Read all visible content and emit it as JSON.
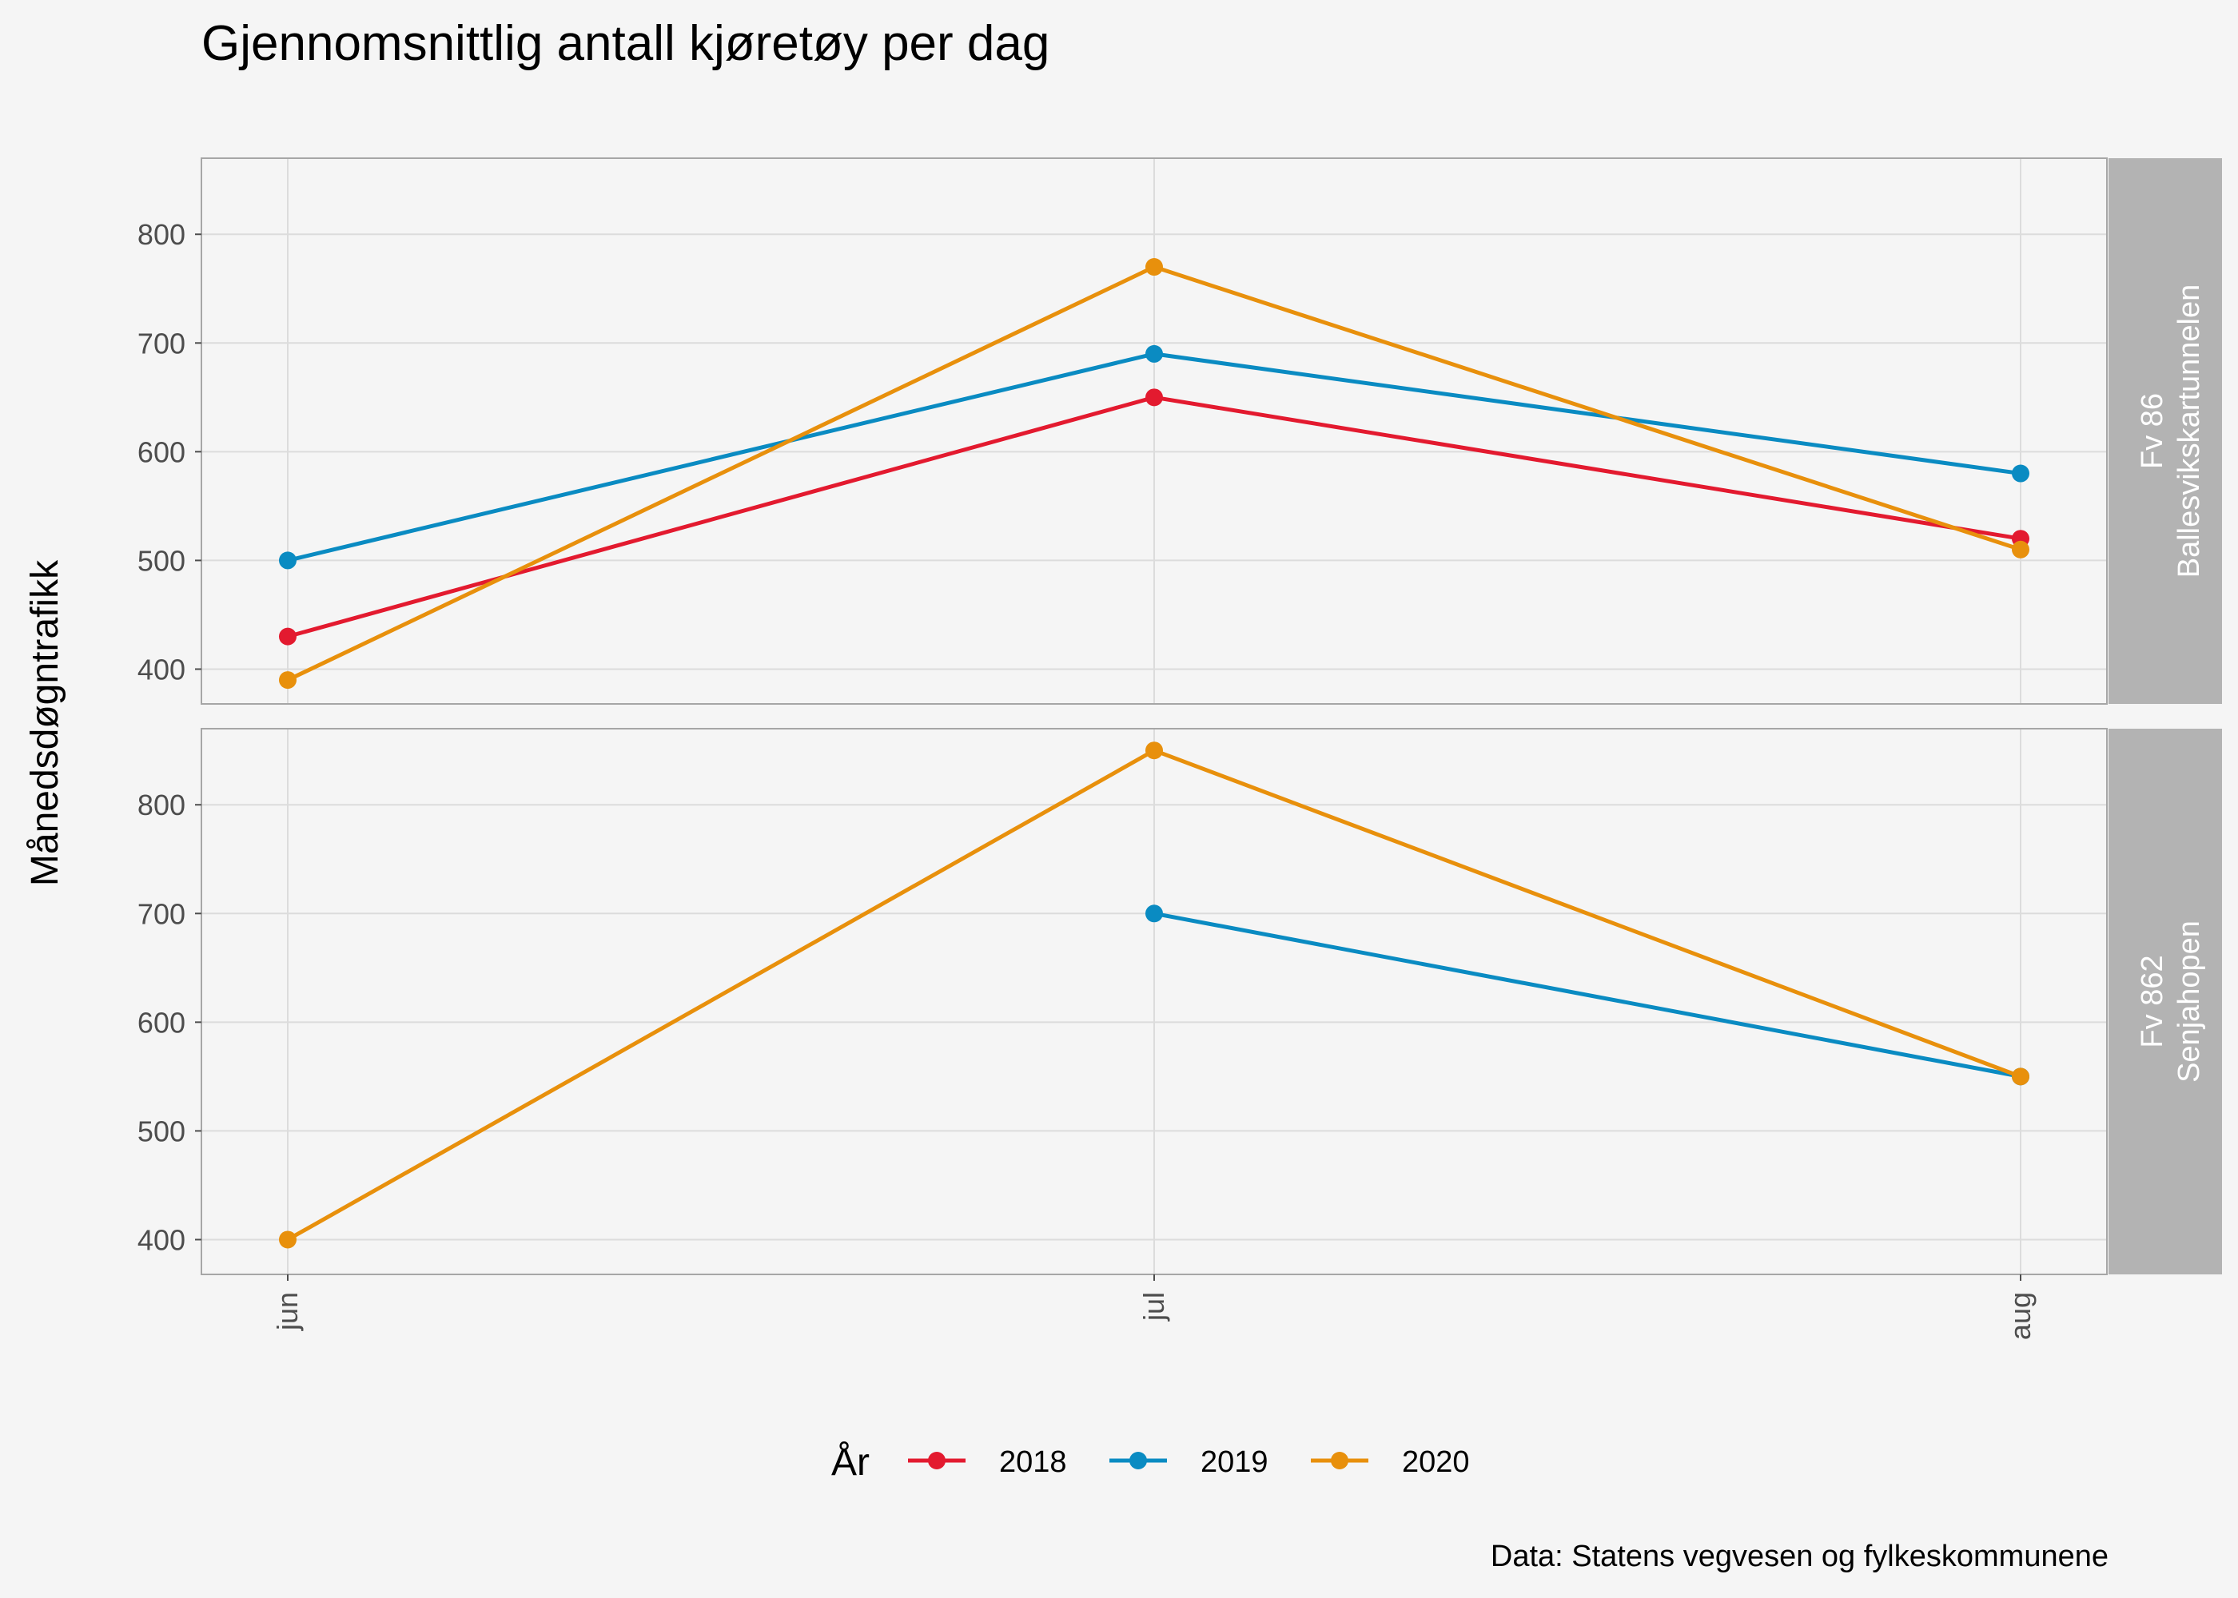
{
  "chart_data": {
    "type": "line",
    "title": "Gjennomsnittlig antall kjøretøy per dag",
    "ylabel": "Månedsdøgntrafikk",
    "xlabel": "",
    "caption": "Data: Statens vegvesen og fylkeskommunene",
    "legend": {
      "title": "År",
      "placement": "bottom"
    },
    "categories": [
      "jun",
      "jul",
      "aug"
    ],
    "ylim": [
      368,
      870
    ],
    "yticks": [
      400,
      500,
      600,
      700,
      800
    ],
    "grid": true,
    "series_colors": {
      "2018": "#e31a2f",
      "2019": "#0a8bc2",
      "2020": "#e8900c"
    },
    "panels": [
      {
        "strip_lines": [
          "Fv 86",
          "Ballesvikskartunnelen"
        ],
        "series": [
          {
            "name": "2018",
            "values": [
              430,
              650,
              520
            ]
          },
          {
            "name": "2019",
            "values": [
              500,
              690,
              580
            ]
          },
          {
            "name": "2020",
            "values": [
              390,
              770,
              510
            ]
          }
        ]
      },
      {
        "strip_lines": [
          "Fv 862",
          "Senjahopen"
        ],
        "series": [
          {
            "name": "2018",
            "values": [
              null,
              null,
              null
            ]
          },
          {
            "name": "2019",
            "values": [
              null,
              700,
              550
            ]
          },
          {
            "name": "2020",
            "values": [
              400,
              850,
              550
            ]
          }
        ]
      }
    ]
  }
}
